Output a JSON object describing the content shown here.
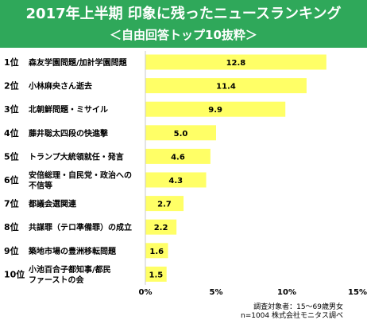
{
  "header": {
    "title": "2017年上半期 印象に残ったニュースランキング",
    "subtitle": "＜自由回答トップ10抜粋＞"
  },
  "chart_data": {
    "type": "bar",
    "orientation": "horizontal",
    "categories": [
      {
        "rank": "1位",
        "label": [
          "森友学園問題/加計学園問題"
        ],
        "value": 12.8
      },
      {
        "rank": "2位",
        "label": [
          "小林麻央さん逝去"
        ],
        "value": 11.4
      },
      {
        "rank": "3位",
        "label": [
          "北朝鮮問題・ミサイル"
        ],
        "value": 9.9
      },
      {
        "rank": "4位",
        "label": [
          "藤井聡太四段の快進撃"
        ],
        "value": 5.0
      },
      {
        "rank": "5位",
        "label": [
          "トランプ大統領就任・発言"
        ],
        "value": 4.6
      },
      {
        "rank": "6位",
        "label": [
          "安倍総理・自民党・政治への",
          "不信等"
        ],
        "value": 4.3
      },
      {
        "rank": "7位",
        "label": [
          "都議会選関連"
        ],
        "value": 2.7
      },
      {
        "rank": "8位",
        "label": [
          "共謀罪（テロ準備罪）の成立"
        ],
        "value": 2.2
      },
      {
        "rank": "9位",
        "label": [
          "築地市場の豊洲移転問題"
        ],
        "value": 1.6
      },
      {
        "rank": "10位",
        "label": [
          "小池百合子都知事/都民",
          "ファーストの会"
        ],
        "value": 1.5
      }
    ],
    "value_labels": [
      "12.8",
      "11.4",
      "9.9",
      "5.0",
      "4.6",
      "4.3",
      "2.7",
      "2.2",
      "1.6",
      "1.5"
    ],
    "xlim": [
      0,
      15
    ],
    "ticks": [
      0,
      5,
      10,
      15
    ],
    "tick_labels": [
      "0%",
      "5%",
      "10%",
      "15%"
    ],
    "bar_color": "#ffff66",
    "grid": false
  },
  "notes": {
    "line1": "調査対象者：15～69歳男女",
    "line2": "n=1004 株式会社モニタス調べ"
  },
  "colors": {
    "banner": "#2fa85a",
    "banner_text": "#ffffff",
    "bar": "#ffff66"
  }
}
